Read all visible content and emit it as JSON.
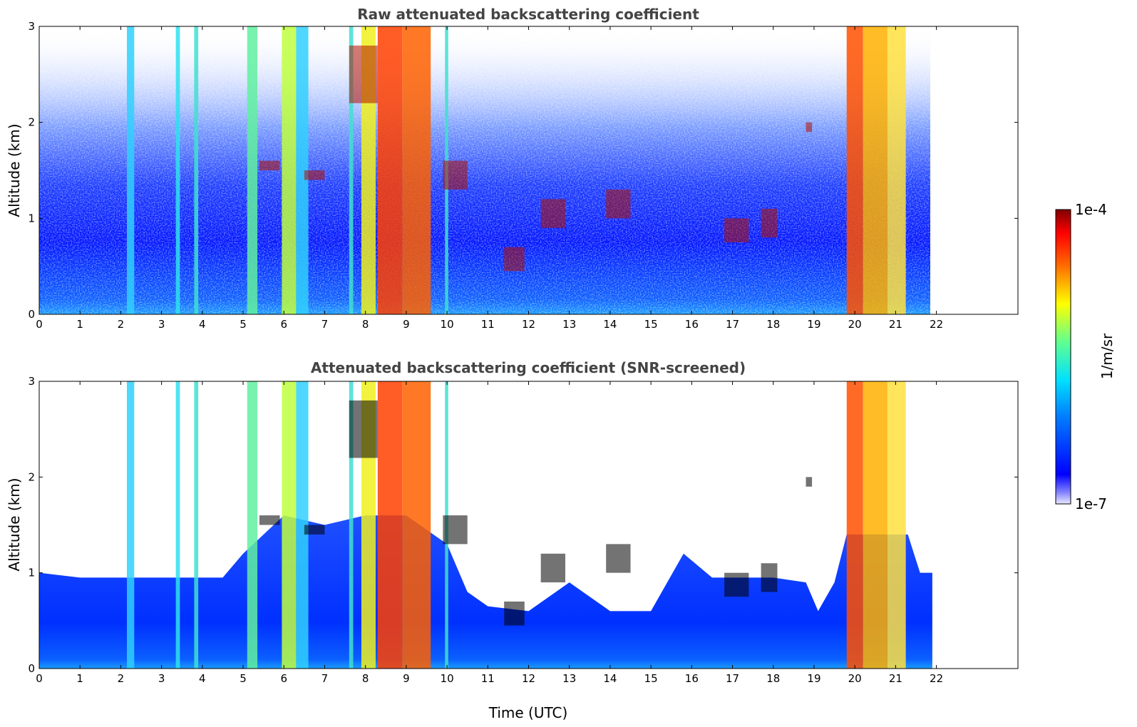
{
  "chart_data": [
    {
      "type": "heatmap",
      "title": "Raw attenuated backscattering coefficient",
      "xlabel": "",
      "ylabel": "Altitude (km)",
      "xlim": [
        0,
        24
      ],
      "ylim": [
        0,
        3
      ],
      "x_ticks": [
        "0",
        "1",
        "2",
        "3",
        "4",
        "5",
        "6",
        "7",
        "8",
        "9",
        "10",
        "11",
        "12",
        "13",
        "14",
        "15",
        "16",
        "17",
        "18",
        "19",
        "20",
        "21",
        "22"
      ],
      "y_ticks": [
        "0",
        "1",
        "2",
        "3"
      ],
      "data_extent_x": [
        0,
        21.9
      ],
      "screened": false
    },
    {
      "type": "heatmap",
      "title": "Attenuated backscattering coefficient (SNR-screened)",
      "xlabel": "Time (UTC)",
      "ylabel": "Altitude (km)",
      "xlim": [
        0,
        24
      ],
      "ylim": [
        0,
        3
      ],
      "x_ticks": [
        "0",
        "1",
        "2",
        "3",
        "4",
        "5",
        "6",
        "7",
        "8",
        "9",
        "10",
        "11",
        "12",
        "13",
        "14",
        "15",
        "16",
        "17",
        "18",
        "19",
        "20",
        "21",
        "22"
      ],
      "y_ticks": [
        "0",
        "1",
        "2",
        "3"
      ],
      "data_extent_x": [
        0,
        21.9
      ],
      "screened": true
    }
  ],
  "colorbar": {
    "label": "1/m/sr",
    "max_label": "1e-4",
    "min_label": "1e-7",
    "scale": "log",
    "colormap": "jet"
  }
}
